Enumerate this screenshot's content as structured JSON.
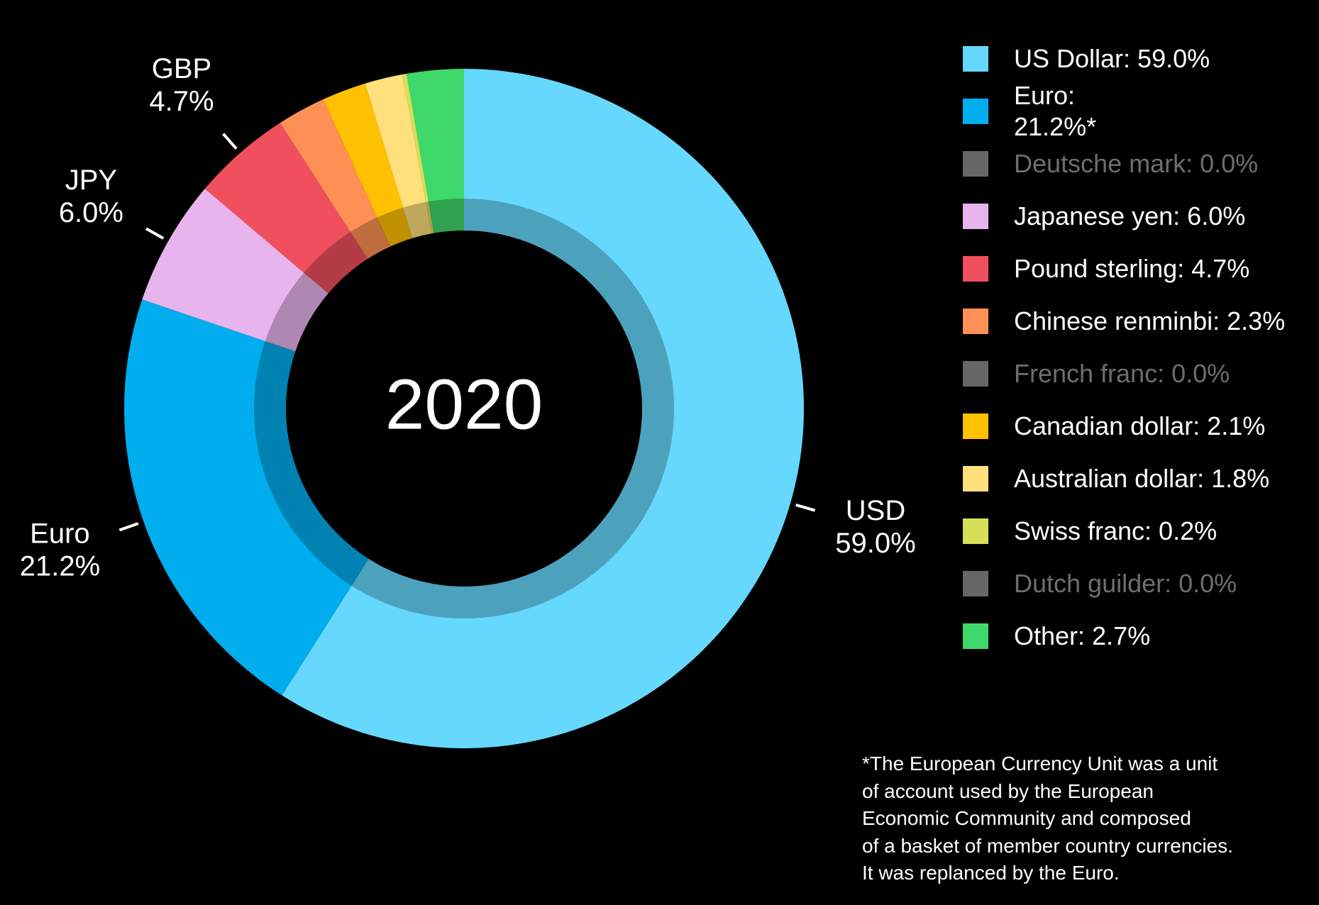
{
  "chart_data": {
    "type": "donut",
    "center_label": "2020",
    "categories": [
      "US Dollar: 59.0%",
      "Euro:\n21.2%*",
      "Deutsche mark: 0.0%",
      "Japanese yen: 6.0%",
      "Pound sterling: 4.7%",
      "Chinese renminbi: 2.3%",
      "French franc: 0.0%",
      "Canadian dollar: 2.1%",
      "Australian dollar: 1.8%",
      "Swiss franc: 0.2%",
      "Dutch guilder: 0.0%",
      "Other: 2.7%"
    ],
    "values": [
      59.0,
      21.2,
      0.0,
      6.0,
      4.7,
      2.3,
      0.0,
      2.1,
      1.8,
      0.2,
      0.0,
      2.7
    ],
    "short_labels": [
      "USD",
      "Euro",
      null,
      "JPY",
      "GBP",
      null,
      null,
      null,
      null,
      null,
      null,
      null
    ],
    "value_labels": [
      "59.0%",
      "21.2%",
      null,
      "6.0%",
      "4.7%",
      null,
      null,
      null,
      null,
      null,
      null,
      null
    ],
    "colors": [
      "#66d8fd",
      "#00aeef",
      "#666666",
      "#e8b4ee",
      "#f0505e",
      "#ff9055",
      "#666666",
      "#ffc000",
      "#ffe07a",
      "#d4e157",
      "#666666",
      "#3ed96a"
    ],
    "footnote": "*The European Currency Unit was a unit\nof account used by the European\nEconomic Community and composed\nof a basket of member country currencies.\nIt was replanced by the Euro."
  }
}
